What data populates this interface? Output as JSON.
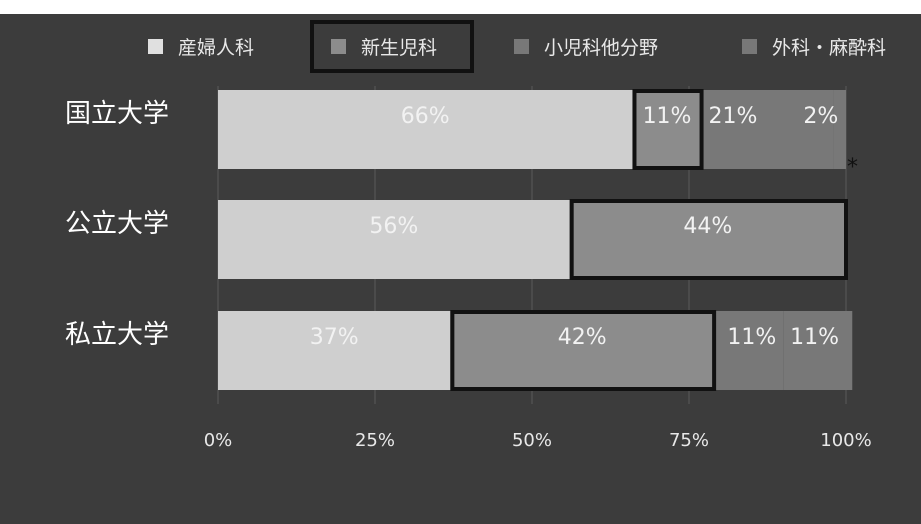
{
  "colors": {
    "background": "#3c3c3c",
    "series": [
      "#cfcfcf",
      "#8c8c8c",
      "#787878",
      "#787878"
    ],
    "highlight": "#111111",
    "text": "#f2f2f2"
  },
  "chart_data": {
    "type": "bar",
    "orientation": "horizontal",
    "stacked": true,
    "percent": true,
    "categories": [
      "国立大学",
      "公立大学",
      "私立大学"
    ],
    "series": [
      {
        "name": "産婦人科",
        "values": [
          66,
          56,
          37
        ],
        "labels": [
          "66%",
          "56%",
          "37%"
        ]
      },
      {
        "name": "新生児科",
        "values": [
          11,
          44,
          42
        ],
        "labels": [
          "11%",
          "44%",
          "42%"
        ]
      },
      {
        "name": "小児科他分野",
        "values": [
          21,
          0,
          11
        ],
        "labels": [
          "21%",
          "",
          "11%"
        ]
      },
      {
        "name": "外科・麻酔科",
        "values": [
          2,
          0,
          11
        ],
        "labels": [
          "2%",
          "",
          "11%"
        ]
      }
    ],
    "highlighted_series": "新生児科",
    "xlim": [
      0,
      100
    ],
    "xticks": [
      "0%",
      "25%",
      "50%",
      "75%",
      "100%"
    ],
    "grid": true,
    "legend": "top",
    "annotation": "*"
  }
}
